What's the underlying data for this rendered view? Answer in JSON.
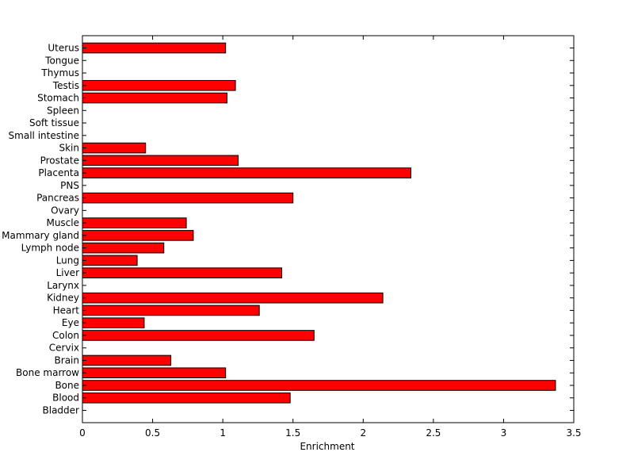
{
  "chart_data": {
    "type": "bar",
    "orientation": "horizontal",
    "title": "",
    "xlabel": "Enrichment",
    "ylabel": "",
    "xlim": [
      0,
      3.5
    ],
    "xticks": [
      "0",
      "0.5",
      "1",
      "1.5",
      "2",
      "2.5",
      "3",
      "3.5"
    ],
    "grid": false,
    "legend": "none",
    "bar_color": "#ff0000",
    "categories": [
      "Bladder",
      "Blood",
      "Bone",
      "Bone marrow",
      "Brain",
      "Cervix",
      "Colon",
      "Eye",
      "Heart",
      "Kidney",
      "Larynx",
      "Liver",
      "Lung",
      "Lymph node",
      "Mammary gland",
      "Muscle",
      "Ovary",
      "Pancreas",
      "PNS",
      "Placenta",
      "Prostate",
      "Skin",
      "Small intestine",
      "Soft tissue",
      "Spleen",
      "Stomach",
      "Testis",
      "Thymus",
      "Tongue",
      "Uterus"
    ],
    "values": [
      0,
      1.48,
      3.37,
      1.02,
      0.63,
      0,
      1.65,
      0.44,
      1.26,
      2.14,
      0,
      1.42,
      0.39,
      0.58,
      0.79,
      0.74,
      0,
      1.5,
      0,
      2.34,
      1.11,
      0.45,
      0,
      0,
      0,
      1.03,
      1.09,
      0,
      0,
      1.02
    ]
  }
}
